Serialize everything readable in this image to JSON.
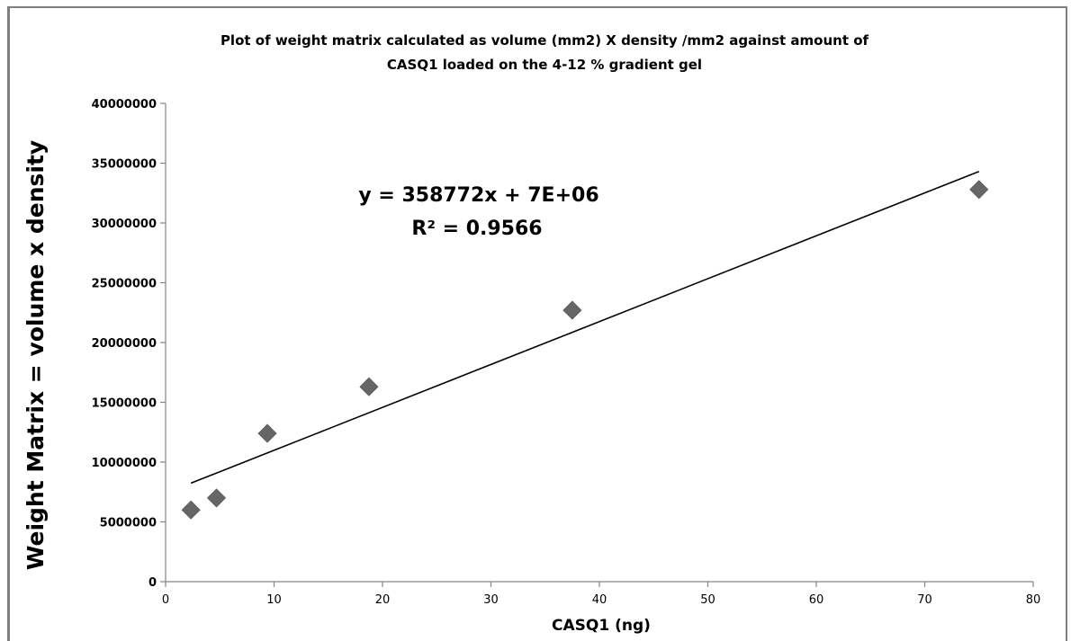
{
  "chart_data": {
    "type": "scatter",
    "title_lines": [
      "Plot of weight matrix calculated as volume (mm2) X density /mm2 against amount of",
      "CASQ1 loaded on the 4-12 % gradient gel"
    ],
    "xlabel": "CASQ1 (ng)",
    "ylabel": "Weight Matrix = volume x density",
    "xlim": [
      0,
      80
    ],
    "ylim": [
      0,
      40000000
    ],
    "x_ticks": [
      "0",
      "10",
      "20",
      "30",
      "40",
      "50",
      "60",
      "70",
      "80"
    ],
    "y_ticks": [
      "0",
      "5000000",
      "10000000",
      "15000000",
      "20000000",
      "25000000",
      "30000000",
      "35000000",
      "40000000"
    ],
    "grid": false,
    "legend": "none",
    "series": [
      {
        "marker": "diamond",
        "color": "#666666",
        "x": [
          2.34,
          4.69,
          9.38,
          18.75,
          37.5,
          75
        ],
        "y": [
          6000000,
          7000000,
          12400000,
          16300000,
          22700000,
          32800000
        ]
      }
    ],
    "trendline": {
      "slope": 358772,
      "intercept": 7400000,
      "x_range": [
        2.34,
        75
      ],
      "color": "#000000"
    },
    "annotations": {
      "equation": "y = 358772x + 7E+06",
      "r_squared": "R² = 0.9566"
    }
  }
}
